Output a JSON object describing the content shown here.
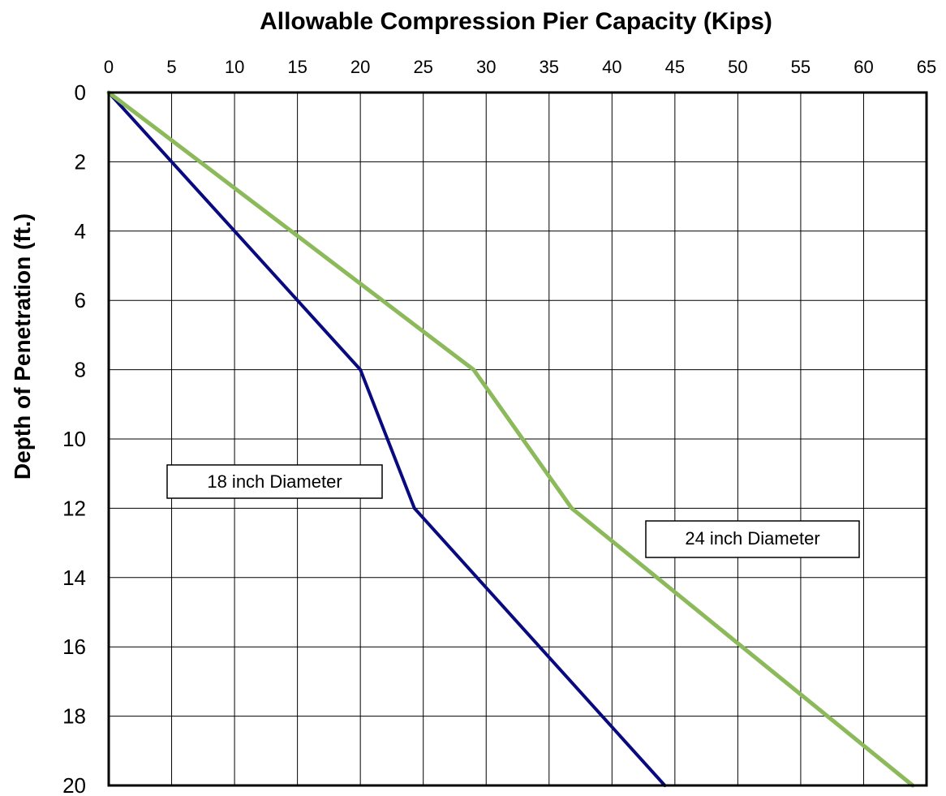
{
  "chart_data": {
    "type": "line",
    "title": "Allowable Compression Pier Capacity (Kips)",
    "xlabel": "",
    "ylabel": "Depth of Penetration (ft.)",
    "xlim": [
      0,
      65
    ],
    "ylim": [
      0,
      20
    ],
    "y_inverted": true,
    "x_axis_position": "top",
    "grid": true,
    "x_ticks": [
      0,
      5,
      10,
      15,
      20,
      25,
      30,
      35,
      40,
      45,
      50,
      55,
      60,
      65
    ],
    "y_ticks": [
      0,
      2,
      4,
      6,
      8,
      10,
      12,
      14,
      16,
      18,
      20
    ],
    "series": [
      {
        "label": "18 inch Diameter",
        "color": "#0a0a80",
        "points": [
          [
            0,
            0
          ],
          [
            20,
            8
          ],
          [
            24.3,
            12
          ],
          [
            44.2,
            20
          ]
        ]
      },
      {
        "label": "24 inch Diameter",
        "color": "#8cba5a",
        "points": [
          [
            0,
            0
          ],
          [
            29,
            8
          ],
          [
            36.8,
            12
          ],
          [
            63.9,
            20
          ]
        ]
      }
    ],
    "annotations": [
      {
        "text": "18 inch Diameter",
        "series": 0
      },
      {
        "text": "24 inch Diameter",
        "series": 1
      }
    ]
  }
}
